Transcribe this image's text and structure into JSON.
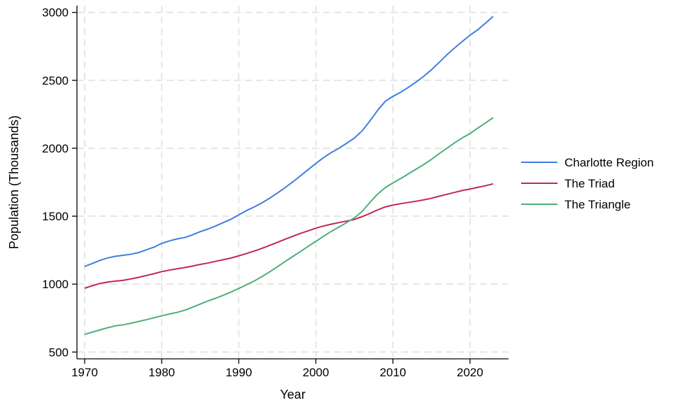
{
  "chart_data": {
    "type": "line",
    "title": "",
    "xlabel": "Year",
    "ylabel": "Population (Thousands)",
    "xlim": [
      1969,
      2025
    ],
    "ylim": [
      450,
      3050
    ],
    "x_ticks": [
      1970,
      1980,
      1990,
      2000,
      2010,
      2020
    ],
    "y_ticks": [
      500,
      1000,
      1500,
      2000,
      2500,
      3000
    ],
    "grid": true,
    "legend_position": "right",
    "x": [
      1970,
      1971,
      1972,
      1973,
      1974,
      1975,
      1976,
      1977,
      1978,
      1979,
      1980,
      1981,
      1982,
      1983,
      1984,
      1985,
      1986,
      1987,
      1988,
      1989,
      1990,
      1991,
      1992,
      1993,
      1994,
      1995,
      1996,
      1997,
      1998,
      1999,
      2000,
      2001,
      2002,
      2003,
      2004,
      2005,
      2006,
      2007,
      2008,
      2009,
      2010,
      2011,
      2012,
      2013,
      2014,
      2015,
      2016,
      2017,
      2018,
      2019,
      2020,
      2021,
      2022,
      2023
    ],
    "series": [
      {
        "name": "Charlotte Region",
        "color": "#3d7fe0",
        "values": [
          1130,
          1152,
          1175,
          1193,
          1205,
          1212,
          1220,
          1232,
          1252,
          1272,
          1300,
          1318,
          1333,
          1343,
          1363,
          1386,
          1405,
          1428,
          1453,
          1478,
          1510,
          1541,
          1568,
          1598,
          1632,
          1670,
          1710,
          1752,
          1797,
          1843,
          1888,
          1931,
          1968,
          2000,
          2037,
          2075,
          2128,
          2200,
          2278,
          2345,
          2382,
          2412,
          2448,
          2487,
          2530,
          2578,
          2632,
          2688,
          2738,
          2786,
          2832,
          2872,
          2920,
          2970
        ]
      },
      {
        "name": "The Triad",
        "color": "#c0265e",
        "values": [
          970,
          988,
          1005,
          1015,
          1022,
          1028,
          1038,
          1050,
          1063,
          1077,
          1092,
          1103,
          1113,
          1122,
          1133,
          1145,
          1155,
          1168,
          1180,
          1192,
          1208,
          1225,
          1243,
          1263,
          1285,
          1307,
          1330,
          1352,
          1373,
          1392,
          1412,
          1428,
          1441,
          1453,
          1464,
          1476,
          1496,
          1520,
          1546,
          1568,
          1582,
          1592,
          1601,
          1610,
          1620,
          1632,
          1647,
          1661,
          1675,
          1689,
          1700,
          1712,
          1724,
          1738
        ]
      },
      {
        "name": "The Triangle",
        "color": "#4caf78",
        "values": [
          630,
          647,
          663,
          679,
          693,
          700,
          712,
          725,
          738,
          752,
          767,
          780,
          792,
          808,
          830,
          853,
          876,
          896,
          918,
          942,
          968,
          995,
          1023,
          1055,
          1090,
          1127,
          1166,
          1203,
          1240,
          1278,
          1315,
          1352,
          1388,
          1420,
          1453,
          1488,
          1535,
          1600,
          1662,
          1710,
          1745,
          1777,
          1811,
          1846,
          1880,
          1918,
          1960,
          2000,
          2040,
          2076,
          2108,
          2148,
          2186,
          2225
        ]
      }
    ]
  }
}
